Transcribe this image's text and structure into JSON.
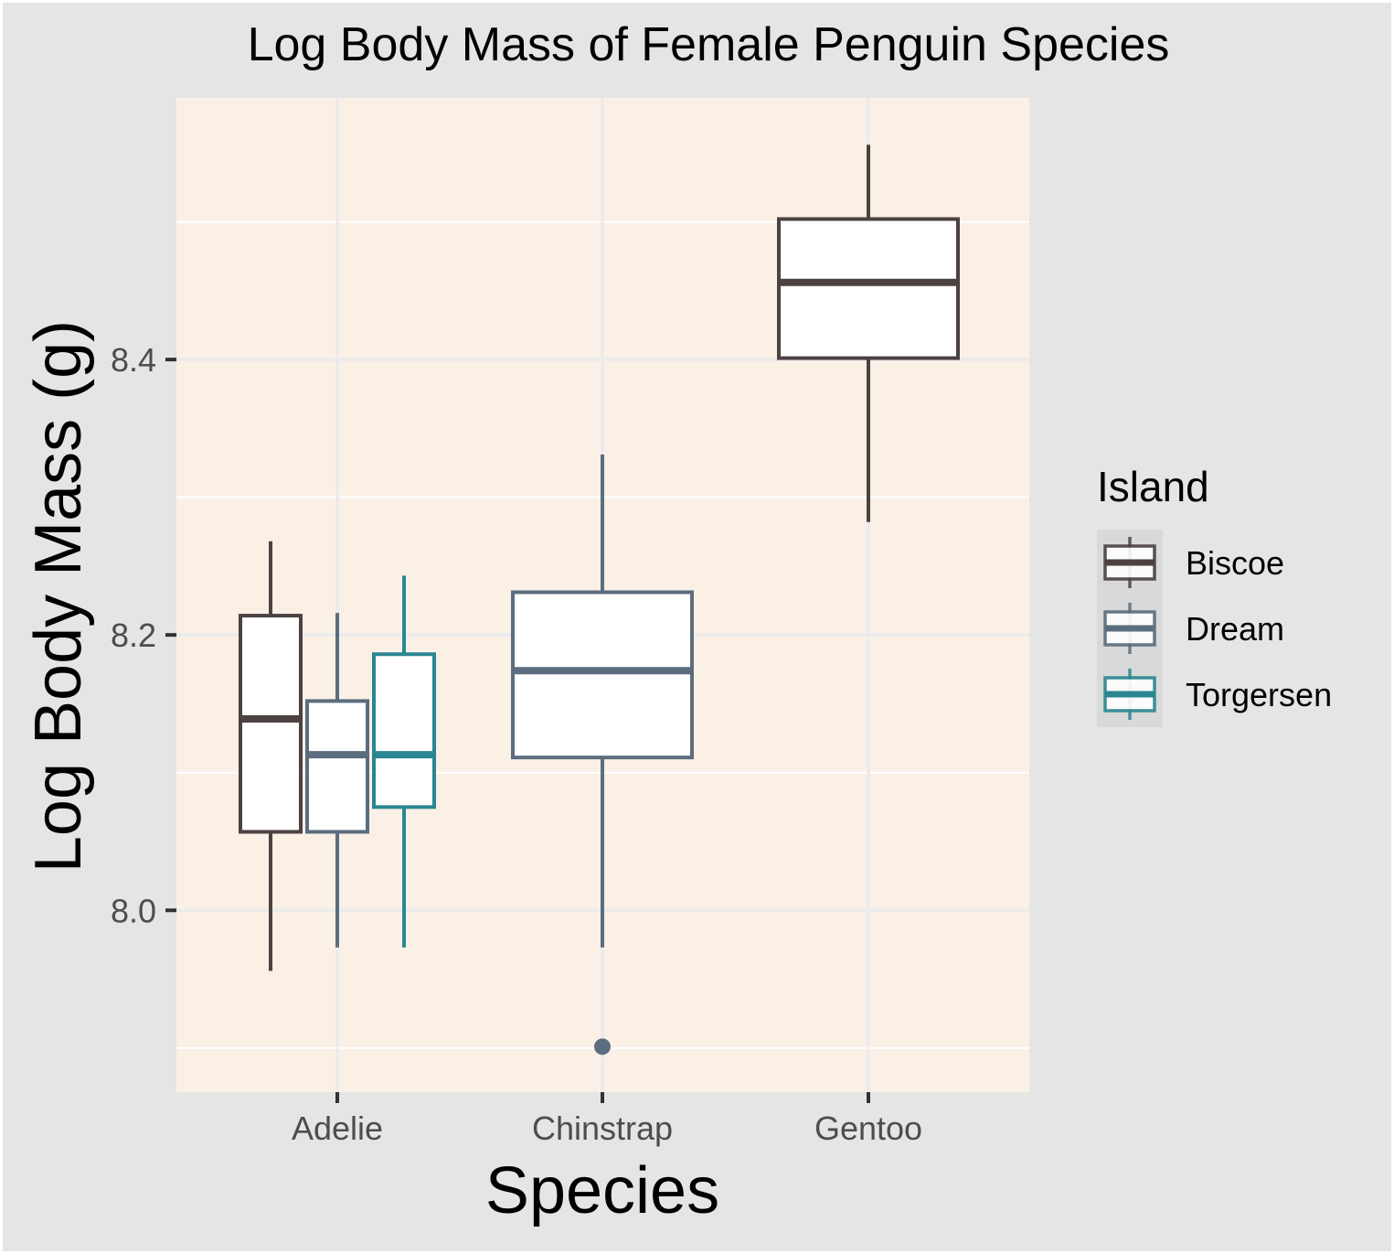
{
  "chart_data": {
    "type": "boxplot",
    "title": "Log Body Mass of Female Penguin Species",
    "xlabel": "Species",
    "ylabel": "Log Body Mass (g)",
    "categories": [
      "Adelie",
      "Chinstrap",
      "Gentoo"
    ],
    "y_ticks": [
      "8.0",
      "8.2",
      "8.4"
    ],
    "ylim": [
      7.868,
      8.59
    ],
    "grid": true,
    "legend": {
      "title": "Island",
      "position": "right",
      "entries": [
        {
          "name": "Biscoe",
          "color": "#4b4241"
        },
        {
          "name": "Dream",
          "color": "#5b6d7e"
        },
        {
          "name": "Torgersen",
          "color": "#2a8691"
        }
      ]
    },
    "boxes": [
      {
        "species": "Adelie",
        "island": "Biscoe",
        "whisker_low": 7.956,
        "q1": 8.057,
        "median": 8.139,
        "q3": 8.214,
        "whisker_high": 8.268,
        "outliers": []
      },
      {
        "species": "Adelie",
        "island": "Dream",
        "whisker_low": 7.973,
        "q1": 8.057,
        "median": 8.113,
        "q3": 8.152,
        "whisker_high": 8.216,
        "outliers": []
      },
      {
        "species": "Adelie",
        "island": "Torgersen",
        "whisker_low": 7.973,
        "q1": 8.075,
        "median": 8.113,
        "q3": 8.186,
        "whisker_high": 8.243,
        "outliers": []
      },
      {
        "species": "Chinstrap",
        "island": "Dream",
        "whisker_low": 7.973,
        "q1": 8.111,
        "median": 8.174,
        "q3": 8.231,
        "whisker_high": 8.331,
        "outliers": [
          7.901
        ]
      },
      {
        "species": "Gentoo",
        "island": "Biscoe",
        "whisker_low": 8.282,
        "q1": 8.401,
        "median": 8.456,
        "q3": 8.502,
        "whisker_high": 8.556,
        "outliers": []
      }
    ],
    "colors": {
      "panel_background": "#faf0e6",
      "plot_background": "#e5e5e5",
      "grid": "#ebebeb",
      "box_fill": "#ffffff",
      "legend_key_background": "#d9d9d9"
    }
  }
}
